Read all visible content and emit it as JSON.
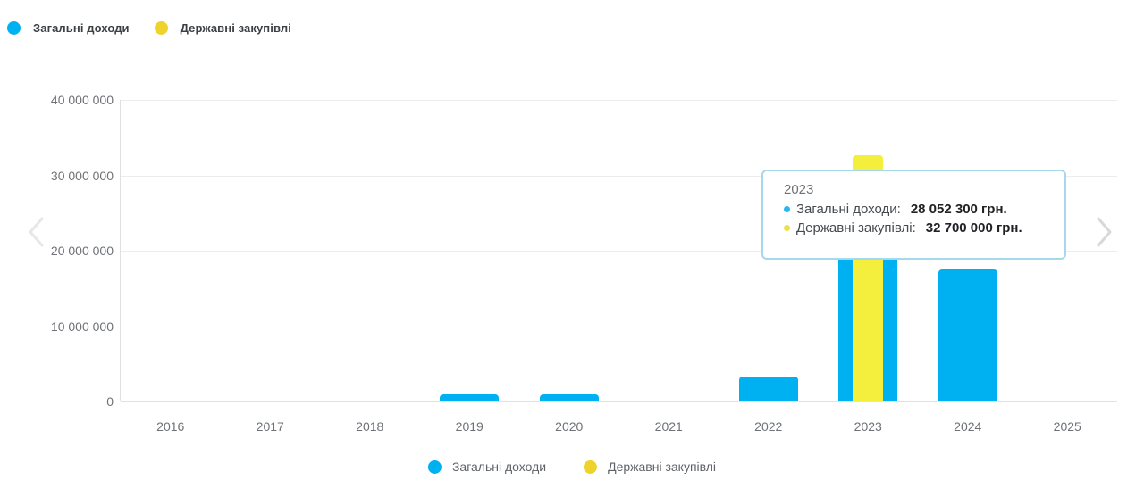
{
  "chart_data": {
    "type": "bar",
    "categories": [
      "2016",
      "2017",
      "2018",
      "2019",
      "2020",
      "2021",
      "2022",
      "2023",
      "2024",
      "2025"
    ],
    "series": [
      {
        "key": "total-revenues",
        "name": "Загальні доходи",
        "color": "#00b1f1",
        "values": [
          0,
          0,
          0,
          1000000,
          1000000,
          0,
          3300000,
          28052300,
          17500000,
          0
        ]
      },
      {
        "key": "public-procurement",
        "name": "Державні закупівлі",
        "color": "#f4ee3c",
        "values": [
          0,
          0,
          0,
          0,
          0,
          0,
          0,
          32700000,
          0,
          0
        ]
      }
    ],
    "ylim": [
      0,
      40000000
    ],
    "ytick_labels": [
      "40 000 000",
      "30 000 000",
      "20 000 000",
      "10 000 000",
      "0"
    ],
    "grid": true,
    "legend_position": "top-left and bottom-center"
  },
  "legend": {
    "dot_blue": "#00b1f1",
    "dot_yellow": "#eed32b"
  },
  "tooltip": {
    "title": "2023",
    "border_color": "#a5d8ec",
    "rows": [
      {
        "label": "Загальні доходи:",
        "value": "28 052 300 грн.",
        "color": "#29b5f0"
      },
      {
        "label": "Державні закупівлі:",
        "value": "32 700 000 грн.",
        "color": "#ece04a"
      }
    ]
  },
  "nav": {
    "prev_label": "previous period",
    "next_label": "next period",
    "chevron_color": "#d8d8d8"
  }
}
